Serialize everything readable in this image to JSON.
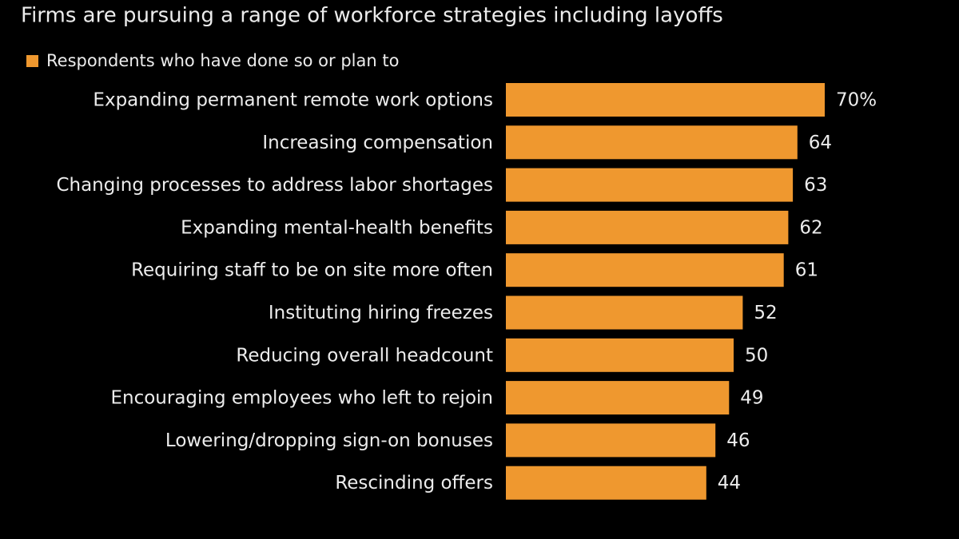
{
  "chart_data": {
    "type": "bar",
    "orientation": "horizontal",
    "title": "Firms are pursuing a range of workforce strategies including layoffs",
    "series": [
      {
        "name": "Respondents who have done so or plan to",
        "color": "#ef982f",
        "values": [
          70,
          64,
          63,
          62,
          61,
          52,
          50,
          49,
          46,
          44
        ],
        "value_labels": [
          "70%",
          "64",
          "63",
          "62",
          "61",
          "52",
          "50",
          "49",
          "46",
          "44"
        ]
      }
    ],
    "categories": [
      "Expanding permanent remote work options",
      "Increasing compensation",
      "Changing processes to address labor shortages",
      "Expanding mental-health benefits",
      "Requiring staff to be on site more often",
      "Instituting hiring freezes",
      "Reducing overall headcount",
      "Encouraging employees who left to rejoin",
      "Lowering/dropping sign-on bonuses",
      "Rescinding offers"
    ]
  }
}
